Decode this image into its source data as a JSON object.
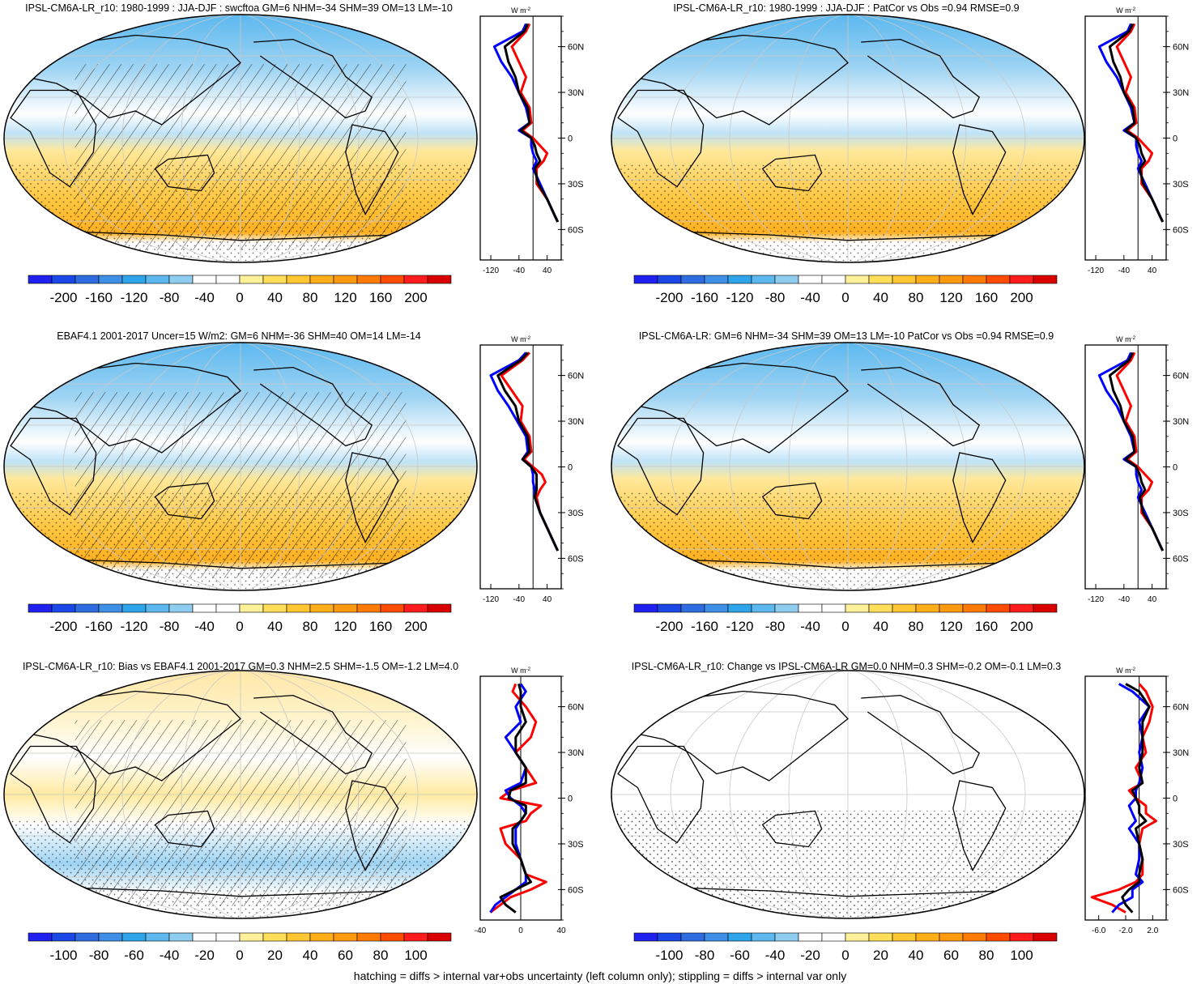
{
  "figure": {
    "footer": "hatching = diffs > internal var+obs uncertainty (left column only); stippling = diffs > internal var only",
    "units_label": "W m",
    "units_sup": "-2"
  },
  "chart_data": [
    {
      "type": "heatmap",
      "title": "IPSL-CM6A-LR_r10: 1980-1999 : JJA-DJF : swcftoa GM=6 NHM=-34 SHM=39 OM=13 LM=-10",
      "colorbar_ticks": [
        "-200",
        "-160",
        "-120",
        "-80",
        "-40",
        "0",
        "40",
        "80",
        "120",
        "160",
        "200"
      ],
      "colorbar_range": [
        -200,
        200
      ],
      "hatching": true,
      "zonal_profile": {
        "xlim": [
          -150,
          80
        ],
        "xticks": [
          "-120",
          "-40",
          "40"
        ],
        "ylim": [
          -80,
          80
        ],
        "yticks": [
          "60N",
          "30N",
          "0",
          "30S",
          "60S"
        ],
        "lat": [
          75,
          70,
          60,
          50,
          40,
          30,
          20,
          10,
          5,
          0,
          -5,
          -10,
          -15,
          -20,
          -30,
          -40,
          -50,
          -55
        ],
        "series": [
          {
            "color": "#ff0000",
            "values": [
              -10,
              -20,
              -60,
              -40,
              -20,
              -35,
              -10,
              -5,
              -30,
              0,
              20,
              40,
              30,
              10,
              10,
              40,
              60,
              70
            ]
          },
          {
            "color": "#0000ff",
            "values": [
              -20,
              -30,
              -110,
              -90,
              -60,
              -40,
              -20,
              -10,
              -40,
              -5,
              -5,
              0,
              10,
              0,
              20,
              40,
              60,
              70
            ]
          },
          {
            "color": "#000000",
            "values": [
              -15,
              -25,
              -80,
              -70,
              -50,
              -40,
              -15,
              -10,
              -35,
              -5,
              5,
              10,
              20,
              5,
              15,
              40,
              60,
              70
            ]
          }
        ]
      }
    },
    {
      "type": "heatmap",
      "title": "IPSL-CM6A-LR_r10: 1980-1999 : JJA-DJF : PatCor vs Obs =0.94 RMSE=0.9",
      "colorbar_ticks": [
        "-200",
        "-160",
        "-120",
        "-80",
        "-40",
        "0",
        "40",
        "80",
        "120",
        "160",
        "200"
      ],
      "colorbar_range": [
        -200,
        200
      ],
      "hatching": false,
      "zonal_profile": {
        "xlim": [
          -150,
          80
        ],
        "xticks": [
          "-120",
          "-40",
          "40"
        ],
        "ylim": [
          -80,
          80
        ],
        "yticks": [
          "60N",
          "30N",
          "0",
          "30S",
          "60S"
        ],
        "lat": [
          75,
          70,
          60,
          50,
          40,
          30,
          20,
          10,
          5,
          0,
          -5,
          -10,
          -15,
          -20,
          -30,
          -40,
          -50,
          -55
        ],
        "series": [
          {
            "color": "#ff0000",
            "values": [
              -10,
              -20,
              -60,
              -40,
              -20,
              -35,
              -10,
              -5,
              -30,
              0,
              20,
              40,
              30,
              10,
              10,
              40,
              60,
              70
            ]
          },
          {
            "color": "#0000ff",
            "values": [
              -20,
              -30,
              -110,
              -90,
              -60,
              -40,
              -20,
              -10,
              -40,
              -5,
              -5,
              0,
              10,
              0,
              20,
              40,
              60,
              70
            ]
          },
          {
            "color": "#000000",
            "values": [
              -15,
              -25,
              -80,
              -70,
              -50,
              -40,
              -15,
              -10,
              -35,
              -5,
              5,
              10,
              20,
              5,
              15,
              40,
              60,
              70
            ]
          }
        ]
      }
    },
    {
      "type": "heatmap",
      "title": "EBAF4.1 2001-2017 Uncer=15 W/m2: GM=6 NHM=-36 SHM=40 OM=14 LM=-14",
      "colorbar_ticks": [
        "-200",
        "-160",
        "-120",
        "-80",
        "-40",
        "0",
        "40",
        "80",
        "120",
        "160",
        "200"
      ],
      "colorbar_range": [
        -200,
        200
      ],
      "hatching": true,
      "zonal_profile": {
        "xlim": [
          -150,
          80
        ],
        "xticks": [
          "-120",
          "-40",
          "40"
        ],
        "ylim": [
          -80,
          80
        ],
        "yticks": [
          "60N",
          "30N",
          "0",
          "30S",
          "60S"
        ],
        "lat": [
          75,
          70,
          60,
          50,
          40,
          30,
          20,
          10,
          5,
          0,
          -5,
          -10,
          -15,
          -20,
          -30,
          -40,
          -50,
          -55
        ],
        "series": [
          {
            "color": "#ff0000",
            "values": [
              -10,
              -30,
              -90,
              -60,
              -30,
              -35,
              -10,
              -5,
              -25,
              0,
              25,
              35,
              20,
              10,
              20,
              40,
              60,
              70
            ]
          },
          {
            "color": "#0000ff",
            "values": [
              -20,
              -40,
              -120,
              -100,
              -70,
              -45,
              -20,
              -15,
              -30,
              -5,
              0,
              0,
              5,
              5,
              20,
              40,
              60,
              70
            ]
          },
          {
            "color": "#000000",
            "values": [
              -15,
              -35,
              -100,
              -80,
              -50,
              -40,
              -15,
              -10,
              -30,
              -5,
              10,
              10,
              10,
              5,
              20,
              40,
              60,
              70
            ]
          }
        ]
      }
    },
    {
      "type": "heatmap",
      "title": "IPSL-CM6A-LR: GM=6 NHM=-34 SHM=39 OM=13 LM=-10 PatCor vs Obs =0.94 RMSE=0.9",
      "colorbar_ticks": [
        "-200",
        "-160",
        "-120",
        "-80",
        "-40",
        "0",
        "40",
        "80",
        "120",
        "160",
        "200"
      ],
      "colorbar_range": [
        -200,
        200
      ],
      "hatching": false,
      "zonal_profile": {
        "xlim": [
          -150,
          80
        ],
        "xticks": [
          "-120",
          "-40",
          "40"
        ],
        "ylim": [
          -80,
          80
        ],
        "yticks": [
          "60N",
          "30N",
          "0",
          "30S",
          "60S"
        ],
        "lat": [
          75,
          70,
          60,
          50,
          40,
          30,
          20,
          10,
          5,
          0,
          -5,
          -10,
          -15,
          -20,
          -30,
          -40,
          -50,
          -55
        ],
        "series": [
          {
            "color": "#ff0000",
            "values": [
              -10,
              -20,
              -60,
              -40,
              -20,
              -35,
              -10,
              -5,
              -30,
              0,
              20,
              40,
              30,
              10,
              10,
              40,
              60,
              70
            ]
          },
          {
            "color": "#0000ff",
            "values": [
              -20,
              -30,
              -110,
              -90,
              -60,
              -40,
              -20,
              -10,
              -40,
              -5,
              -5,
              0,
              10,
              0,
              20,
              40,
              60,
              70
            ]
          },
          {
            "color": "#000000",
            "values": [
              -15,
              -25,
              -80,
              -70,
              -50,
              -40,
              -15,
              -10,
              -35,
              -5,
              5,
              10,
              20,
              5,
              15,
              40,
              60,
              70
            ]
          }
        ]
      }
    },
    {
      "type": "heatmap",
      "title": "IPSL-CM6A-LR_r10: Bias vs EBAF4.1 2001-2017 GM=0.3 NHM=2.5 SHM=-1.5 OM=-1.2 LM=4.0",
      "colorbar_ticks": [
        "-100",
        "-80",
        "-60",
        "-40",
        "-20",
        "0",
        "20",
        "40",
        "60",
        "80",
        "100"
      ],
      "colorbar_range": [
        -100,
        100
      ],
      "hatching": true,
      "zonal_profile": {
        "xlim": [
          -40,
          40
        ],
        "xticks": [
          "-40",
          "0",
          "40"
        ],
        "ylim": [
          -80,
          80
        ],
        "yticks": [
          "60N",
          "30N",
          "0",
          "30S",
          "60S"
        ],
        "lat": [
          75,
          70,
          60,
          50,
          40,
          30,
          20,
          10,
          5,
          0,
          -5,
          -10,
          -15,
          -20,
          -30,
          -40,
          -50,
          -55,
          -60,
          -65,
          -70,
          -75
        ],
        "series": [
          {
            "color": "#ff0000",
            "values": [
              -5,
              -8,
              5,
              15,
              10,
              -5,
              5,
              15,
              -10,
              -20,
              20,
              10,
              5,
              -20,
              -15,
              0,
              5,
              25,
              10,
              -10,
              -20,
              -30
            ]
          },
          {
            "color": "#0000ff",
            "values": [
              0,
              5,
              -5,
              0,
              -15,
              -5,
              5,
              0,
              -15,
              -10,
              0,
              5,
              0,
              -5,
              -5,
              0,
              5,
              5,
              -5,
              -15,
              -25,
              -30
            ]
          },
          {
            "color": "#000000",
            "values": [
              -2,
              0,
              0,
              5,
              -5,
              -5,
              5,
              5,
              -10,
              -12,
              5,
              5,
              0,
              -8,
              -8,
              0,
              5,
              10,
              -5,
              -20,
              -15,
              -5
            ]
          }
        ]
      }
    },
    {
      "type": "heatmap",
      "title": "IPSL-CM6A-LR_r10: Change vs IPSL-CM6A-LR GM=0.0 NHM=0.3 SHM=-0.2 OM=-0.1 LM=0.3",
      "colorbar_ticks": [
        "-100",
        "-80",
        "-60",
        "-40",
        "-20",
        "0",
        "20",
        "40",
        "60",
        "80",
        "100"
      ],
      "colorbar_range": [
        -100,
        100
      ],
      "hatching": false,
      "zonal_profile": {
        "xlim": [
          -8,
          4
        ],
        "xticks": [
          "-6.0",
          "-2.0",
          "2.0"
        ],
        "ylim": [
          -80,
          80
        ],
        "yticks": [
          "60N",
          "30N",
          "0",
          "30S",
          "60S"
        ],
        "lat": [
          75,
          70,
          60,
          50,
          40,
          30,
          20,
          10,
          5,
          0,
          -5,
          -10,
          -15,
          -20,
          -30,
          -40,
          -50,
          -55,
          -60,
          -65,
          -70,
          -75
        ],
        "series": [
          {
            "color": "#ff0000",
            "values": [
              0,
              1,
              2,
              1.5,
              0.5,
              1,
              -0.5,
              0.5,
              -1.5,
              -0.5,
              1,
              1,
              2.5,
              0.5,
              0,
              0.5,
              0.5,
              -0.5,
              -3,
              -7,
              -4,
              -2
            ]
          },
          {
            "color": "#0000ff",
            "values": [
              -3,
              -1,
              1.5,
              0,
              0.5,
              0,
              0.5,
              0,
              -0.5,
              -0.5,
              -1.5,
              -1,
              -0.5,
              -1.5,
              0,
              0,
              -0.5,
              0.5,
              -1,
              -1,
              -3,
              -4
            ]
          },
          {
            "color": "#000000",
            "values": [
              -2,
              0,
              1.5,
              0.5,
              0.5,
              0.5,
              0,
              0.5,
              -1,
              -0.5,
              0,
              0,
              1,
              -0.5,
              0,
              0.5,
              0,
              0,
              -1.5,
              -2.5,
              -2,
              -1
            ]
          }
        ]
      }
    }
  ]
}
